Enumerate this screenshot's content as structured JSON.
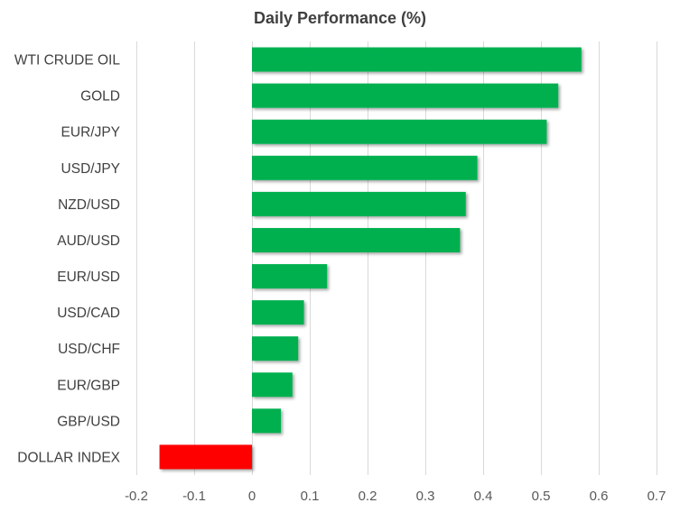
{
  "chart_data": {
    "type": "bar",
    "orientation": "horizontal",
    "title": "Daily Performance  (%)",
    "categories": [
      "WTI CRUDE OIL",
      "GOLD",
      "EUR/JPY",
      "USD/JPY",
      "NZD/USD",
      "AUD/USD",
      "EUR/USD",
      "USD/CAD",
      "USD/CHF",
      "EUR/GBP",
      "GBP/USD",
      "DOLLAR INDEX"
    ],
    "values": [
      0.57,
      0.53,
      0.51,
      0.39,
      0.37,
      0.36,
      0.13,
      0.09,
      0.08,
      0.07,
      0.05,
      -0.16
    ],
    "xlim": [
      -0.2,
      0.7
    ],
    "xticks": [
      -0.2,
      -0.1,
      0,
      0.1,
      0.2,
      0.3,
      0.4,
      0.5,
      0.6,
      0.7
    ],
    "xtick_labels": [
      "-0.2",
      "-0.1",
      "0",
      "0.1",
      "0.2",
      "0.3",
      "0.4",
      "0.5",
      "0.6",
      "0.7"
    ],
    "grid": true,
    "positive_color": "#00b050",
    "negative_color": "#ff0000",
    "grid_color": "#d9d9d9"
  }
}
